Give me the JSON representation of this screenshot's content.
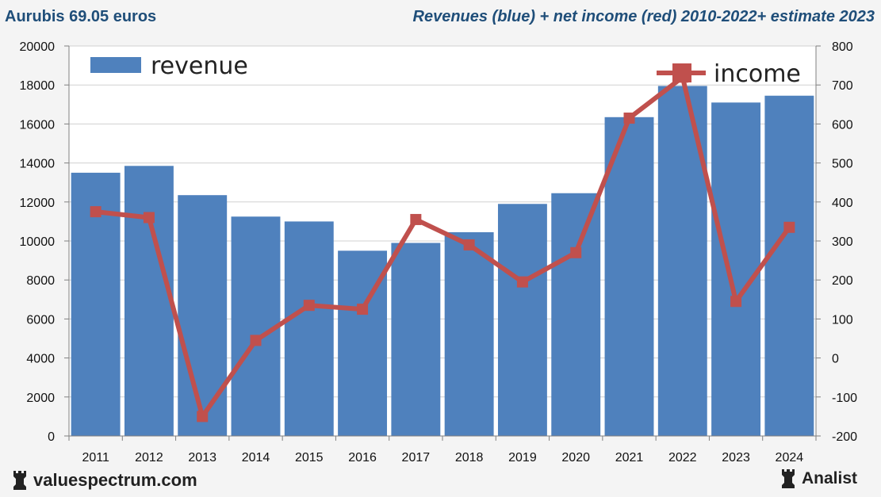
{
  "header": {
    "left_title": "Aurubis 69.05 euros",
    "right_title": "Revenues (blue) + net income (red) 2010-2022+ estimate 2023"
  },
  "footer": {
    "site": "valuespectrum.com",
    "brand": "Analist",
    "icon": "rook-icon"
  },
  "colors": {
    "revenue": "#4f81bd",
    "income": "#c0504d",
    "title": "#1f4e79"
  },
  "chart_data": {
    "type": "bar",
    "categories": [
      "2011",
      "2012",
      "2013",
      "2014",
      "2015",
      "2016",
      "2017",
      "2018",
      "2019",
      "2020",
      "2021",
      "2022",
      "2023",
      "2024"
    ],
    "series": [
      {
        "name": "revenue",
        "type": "bar",
        "axis": "left",
        "values": [
          13500,
          13850,
          12350,
          11250,
          11000,
          9500,
          9900,
          10450,
          11900,
          12450,
          16350,
          17950,
          17100,
          17450
        ]
      },
      {
        "name": "income",
        "type": "line",
        "axis": "right",
        "values": [
          375,
          360,
          -150,
          45,
          135,
          125,
          355,
          290,
          195,
          270,
          615,
          720,
          145,
          335
        ]
      }
    ],
    "y_left": {
      "min": 0,
      "max": 20000,
      "step": 2000,
      "ticks": [
        "20000",
        "18000",
        "16000",
        "14000",
        "12000",
        "10000",
        "8000",
        "6000",
        "4000",
        "2000",
        "0"
      ]
    },
    "y_right": {
      "min": -200,
      "max": 800,
      "step": 100,
      "ticks": [
        "800",
        "700",
        "600",
        "500",
        "400",
        "300",
        "200",
        "100",
        "0",
        "-100",
        "-200"
      ]
    },
    "legend": [
      {
        "label": "revenue",
        "placement": "top-left"
      },
      {
        "label": "income",
        "placement": "top-right"
      }
    ],
    "grid": true
  }
}
